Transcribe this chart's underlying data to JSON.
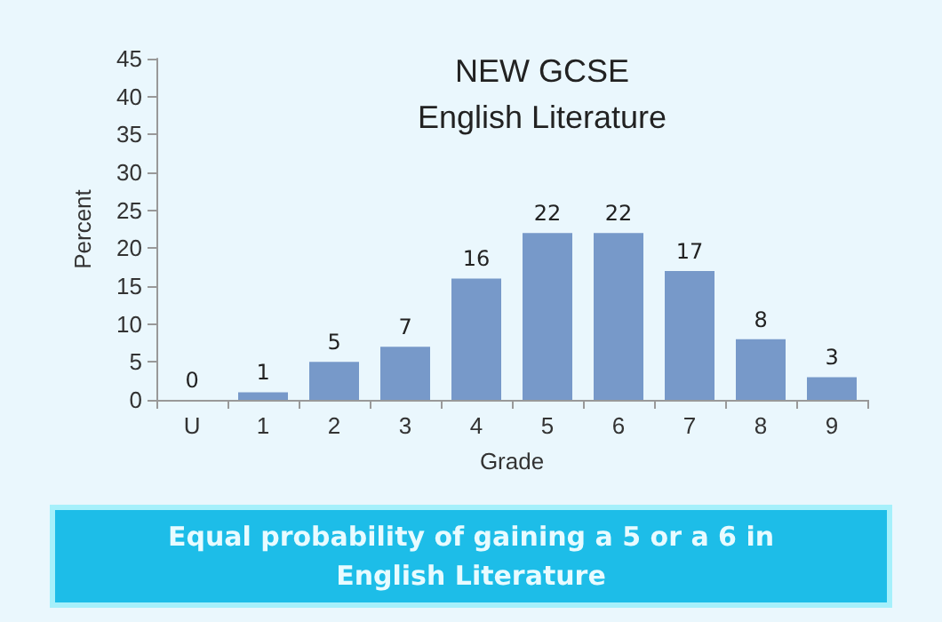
{
  "chart_data": {
    "type": "bar",
    "title": "NEW GCSE\nEnglish Literature",
    "xlabel": "Grade",
    "ylabel": "Percent",
    "categories": [
      "U",
      "1",
      "2",
      "3",
      "4",
      "5",
      "6",
      "7",
      "8",
      "9"
    ],
    "values": [
      0,
      1,
      5,
      7,
      16,
      22,
      22,
      17,
      8,
      3
    ],
    "color": "#7799c9",
    "data_labels": true,
    "ylim": [
      0,
      45
    ],
    "yticks": [
      0,
      5,
      10,
      15,
      20,
      25,
      30,
      35,
      40,
      45
    ],
    "grid": false,
    "annotations": [
      "Equal probability of gaining a 5 or a 6 in\nEnglish Literature"
    ]
  }
}
